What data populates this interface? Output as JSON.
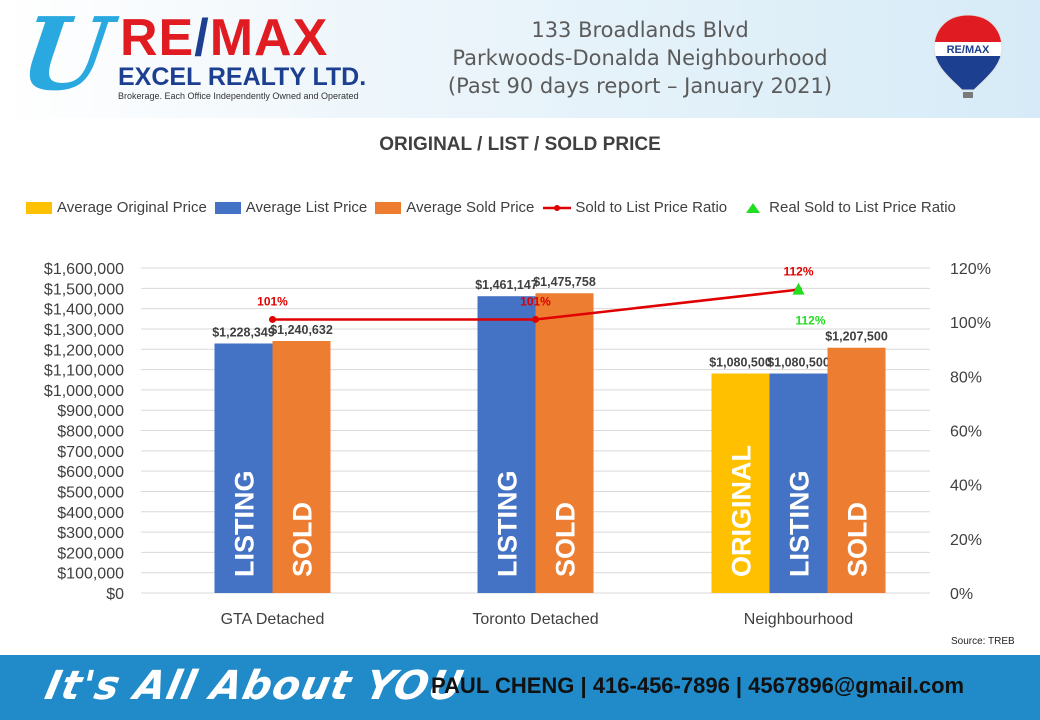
{
  "header": {
    "logo_mark": "U",
    "logo_brand": "RE/MAX",
    "logo_brand_parts": [
      "RE",
      "/",
      "MAX"
    ],
    "logo_company": "EXCEL REALTY LTD.",
    "logo_tagline": "Brokerage. Each Office Independently Owned and Operated",
    "title_lines": [
      "133 Broadlands Blvd",
      "Parkwoods-Donalda Neighbourhood",
      "(Past 90 days report – January 2021)"
    ],
    "balloon_label": "RE/MAX"
  },
  "colors": {
    "original": "#ffc000",
    "list": "#4472c4",
    "sold": "#ed7d31",
    "ratio_line": "#e00000",
    "real_ratio": "#22dd22",
    "footer_bg": "#218bca"
  },
  "chart_data": {
    "type": "bar",
    "title": "ORIGINAL / LIST / SOLD PRICE",
    "categories": [
      "GTA  Detached",
      "Toronto Detached",
      "Neighbourhood"
    ],
    "series": [
      {
        "name": "Average Original Price",
        "values": [
          null,
          null,
          1080500
        ],
        "labels": [
          "",
          "",
          "$1,080,500"
        ],
        "bar_text": [
          "",
          "",
          "ORIGINAL"
        ]
      },
      {
        "name": "Average List Price",
        "values": [
          1228349,
          1461147,
          1080500
        ],
        "labels": [
          "$1,228,349",
          "$1,461,147",
          "$1,080,500"
        ],
        "bar_text": [
          "LISTING",
          "LISTING",
          "LISTING"
        ]
      },
      {
        "name": "Average Sold Price",
        "values": [
          1240632,
          1475758,
          1207500
        ],
        "labels": [
          "$1,240,632",
          "$1,475,758",
          "$1,207,500"
        ],
        "bar_text": [
          "SOLD",
          "SOLD",
          "SOLD"
        ]
      }
    ],
    "line_series": {
      "name": "Sold to List Price Ratio",
      "values": [
        101,
        101,
        112
      ],
      "labels": [
        "101%",
        "101%",
        "112%"
      ]
    },
    "marker_series": {
      "name": "Real Sold to List Price Ratio",
      "values": [
        null,
        null,
        112
      ],
      "labels": [
        "",
        "",
        "112%"
      ]
    },
    "y_left": {
      "min": 0,
      "max": 1600000,
      "step": 100000,
      "tick_labels": [
        "$0",
        "$100,000",
        "$200,000",
        "$300,000",
        "$400,000",
        "$500,000",
        "$600,000",
        "$700,000",
        "$800,000",
        "$900,000",
        "$1,000,000",
        "$1,100,000",
        "$1,200,000",
        "$1,300,000",
        "$1,400,000",
        "$1,500,000",
        "$1,600,000"
      ]
    },
    "y_right": {
      "min": 0,
      "max": 120,
      "step": 20,
      "tick_labels": [
        "0%",
        "20%",
        "40%",
        "60%",
        "80%",
        "100%",
        "120%"
      ]
    },
    "grid": true,
    "legend_position": "top"
  },
  "source": "Source: TREB",
  "footer": {
    "slogan": "It's All About YOU",
    "contact": "PAUL CHENG | 416-456-7896 | 4567896@gmail.com"
  }
}
